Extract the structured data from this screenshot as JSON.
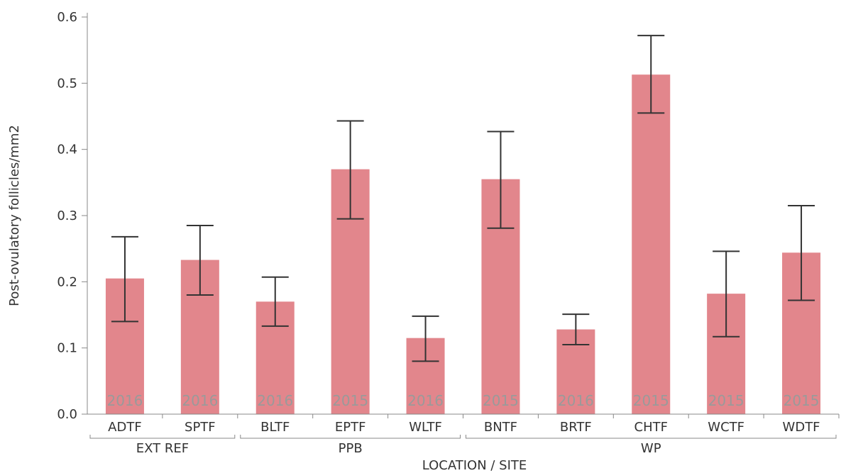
{
  "chart_data": {
    "type": "bar",
    "title": "",
    "xlabel": "LOCATION / SITE",
    "ylabel": "Post-ovulatory follicles/mm2",
    "ylim": [
      0,
      0.6
    ],
    "yticks": [
      "0.0",
      "0.1",
      "0.2",
      "0.3",
      "0.4",
      "0.5",
      "0.6"
    ],
    "grid": false,
    "colors": {
      "bar": "#e2868c",
      "error": "#333333",
      "axis": "#888888"
    },
    "categories": [
      "ADTF",
      "SPTF",
      "BLTF",
      "EPTF",
      "WLTF",
      "BNTF",
      "BRTF",
      "CHTF",
      "WCTF",
      "WDTF"
    ],
    "values": [
      0.205,
      0.233,
      0.17,
      0.37,
      0.115,
      0.355,
      0.128,
      0.513,
      0.182,
      0.244
    ],
    "error_low": [
      0.14,
      0.18,
      0.133,
      0.295,
      0.08,
      0.281,
      0.105,
      0.455,
      0.117,
      0.172
    ],
    "error_high": [
      0.268,
      0.285,
      0.207,
      0.443,
      0.148,
      0.427,
      0.151,
      0.572,
      0.246,
      0.315
    ],
    "years": [
      "2016",
      "2016",
      "2016",
      "2015",
      "2016",
      "2015",
      "2016",
      "2015",
      "2015",
      "2015"
    ],
    "groups": [
      {
        "label": "EXT REF",
        "members": [
          "ADTF",
          "SPTF"
        ]
      },
      {
        "label": "PPB",
        "members": [
          "BLTF",
          "EPTF",
          "WLTF"
        ]
      },
      {
        "label": "WP",
        "members": [
          "BNTF",
          "BRTF",
          "CHTF",
          "WCTF",
          "WDTF"
        ]
      }
    ]
  }
}
